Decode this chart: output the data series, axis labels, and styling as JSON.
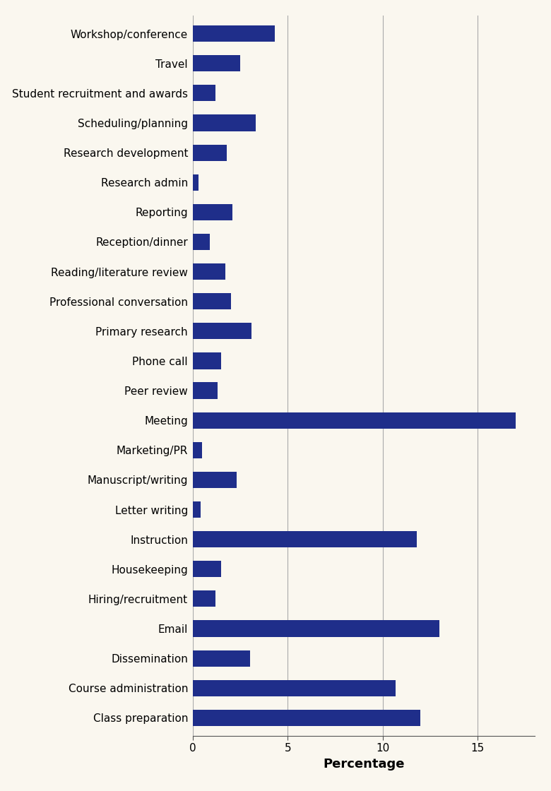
{
  "categories": [
    "Class preparation",
    "Course administration",
    "Dissemination",
    "Email",
    "Hiring/recruitment",
    "Housekeeping",
    "Instruction",
    "Letter writing",
    "Manuscript/writing",
    "Marketing/PR",
    "Meeting",
    "Peer review",
    "Phone call",
    "Primary research",
    "Professional conversation",
    "Reading/literature review",
    "Reception/dinner",
    "Reporting",
    "Research admin",
    "Research development",
    "Scheduling/planning",
    "Student recruitment and awards",
    "Travel",
    "Workshop/conference"
  ],
  "values": [
    12.0,
    10.7,
    3.0,
    13.0,
    1.2,
    1.5,
    11.8,
    0.4,
    2.3,
    0.5,
    17.0,
    1.3,
    1.5,
    3.1,
    2.0,
    1.7,
    0.9,
    2.1,
    0.3,
    1.8,
    3.3,
    1.2,
    2.5,
    4.3
  ],
  "bar_color": "#1F2E8A",
  "background_color": "#FAF7EF",
  "xlabel": "Percentage",
  "xlim": [
    0,
    18
  ],
  "xticks": [
    0,
    5,
    10,
    15
  ],
  "grid_color": "#AAAAAA",
  "label_fontsize": 11,
  "tick_fontsize": 11,
  "xlabel_fontsize": 13,
  "bar_height": 0.55
}
